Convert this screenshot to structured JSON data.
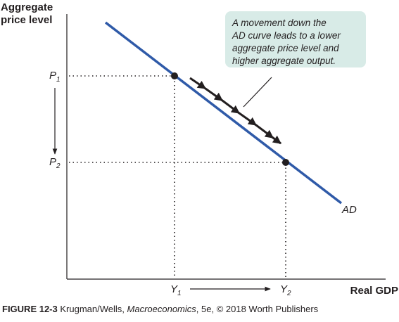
{
  "axes": {
    "ylabel_line1": "Aggregate",
    "ylabel_line2": "price level",
    "xlabel": "Real GDP"
  },
  "points": {
    "p1_main": "P",
    "p1_sub": "1",
    "p2_main": "P",
    "p2_sub": "2",
    "y1_main": "Y",
    "y1_sub": "1",
    "y2_main": "Y",
    "y2_sub": "2"
  },
  "curve": {
    "label": "AD",
    "color": "#2f5aa8"
  },
  "callout": {
    "lines": [
      "A movement down the",
      "AD curve leads to a lower",
      "aggregate price level and",
      "higher aggregate output."
    ],
    "fill": "#d8ebe7"
  },
  "caption": {
    "figure": "FIGURE 12-3",
    "authors": "Krugman/Wells,",
    "book": "Macroeconomics",
    "rest": ", 5e, © 2018 Worth Publishers"
  }
}
